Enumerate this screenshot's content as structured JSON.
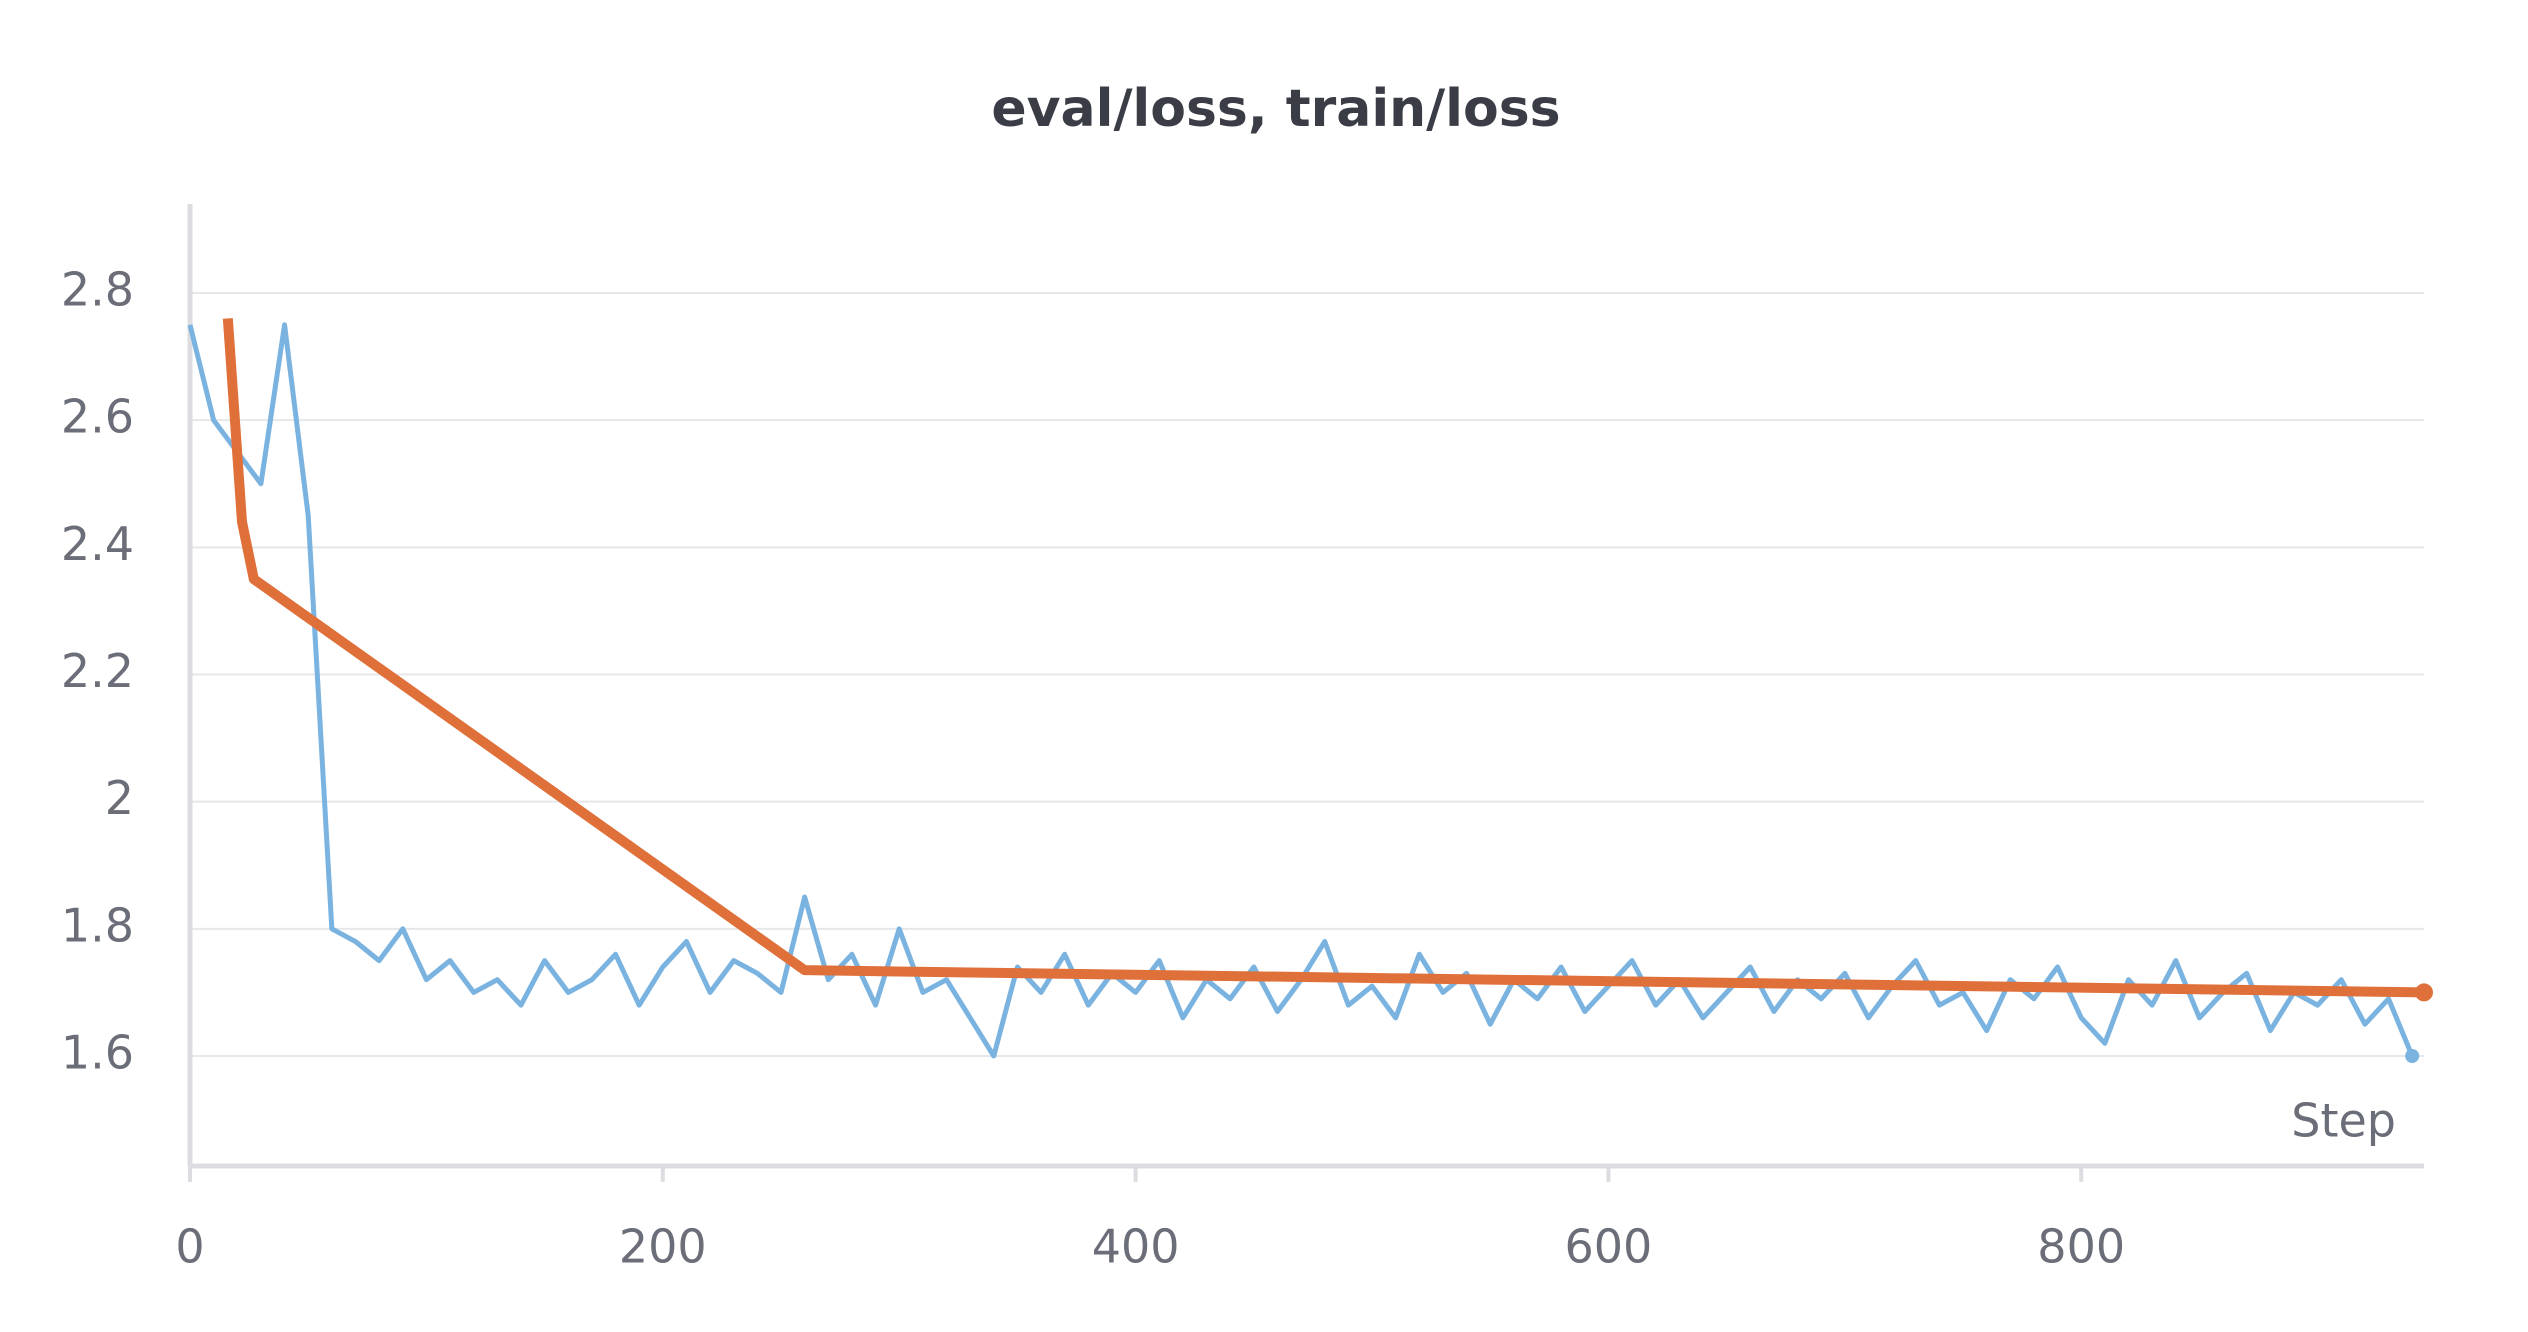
{
  "chart_data": {
    "type": "line",
    "title": "eval/loss, train/loss",
    "x_label": "Step",
    "xlim": [
      0,
      945
    ],
    "xticks": [
      0,
      200,
      400,
      600,
      800
    ],
    "ylim": [
      1.427,
      2.94
    ],
    "yticks": [
      1.6,
      1.8,
      2,
      2.2,
      2.4,
      2.6,
      2.8
    ],
    "grid": true,
    "series": [
      {
        "name": "train/loss",
        "color": "#7ab3e0",
        "x": [
          0,
          10,
          20,
          30,
          40,
          50,
          60,
          70,
          80,
          90,
          100,
          110,
          120,
          130,
          140,
          150,
          160,
          170,
          180,
          190,
          200,
          210,
          220,
          230,
          240,
          250,
          260,
          270,
          280,
          290,
          300,
          310,
          320,
          330,
          340,
          350,
          360,
          370,
          380,
          390,
          400,
          410,
          420,
          430,
          440,
          450,
          460,
          470,
          480,
          490,
          500,
          510,
          520,
          530,
          540,
          550,
          560,
          570,
          580,
          590,
          600,
          610,
          620,
          630,
          640,
          650,
          660,
          670,
          680,
          690,
          700,
          710,
          720,
          730,
          740,
          750,
          760,
          770,
          780,
          790,
          800,
          810,
          820,
          830,
          840,
          850,
          860,
          870,
          880,
          890,
          900,
          910,
          920,
          930,
          940
        ],
        "values": [
          2.75,
          2.6,
          2.55,
          2.5,
          2.75,
          2.45,
          1.8,
          1.78,
          1.75,
          1.8,
          1.72,
          1.75,
          1.7,
          1.72,
          1.68,
          1.75,
          1.7,
          1.72,
          1.76,
          1.68,
          1.74,
          1.78,
          1.7,
          1.75,
          1.73,
          1.7,
          1.85,
          1.72,
          1.76,
          1.68,
          1.8,
          1.7,
          1.72,
          1.66,
          1.6,
          1.74,
          1.7,
          1.76,
          1.68,
          1.73,
          1.7,
          1.75,
          1.66,
          1.72,
          1.69,
          1.74,
          1.67,
          1.72,
          1.78,
          1.68,
          1.71,
          1.66,
          1.76,
          1.7,
          1.73,
          1.65,
          1.72,
          1.69,
          1.74,
          1.67,
          1.71,
          1.75,
          1.68,
          1.72,
          1.66,
          1.7,
          1.74,
          1.67,
          1.72,
          1.69,
          1.73,
          1.66,
          1.71,
          1.75,
          1.68,
          1.7,
          1.64,
          1.72,
          1.69,
          1.74,
          1.66,
          1.62,
          1.72,
          1.68,
          1.75,
          1.66,
          1.7,
          1.73,
          1.64,
          1.7,
          1.68,
          1.72,
          1.65,
          1.69,
          1.6
        ]
      },
      {
        "name": "eval/loss",
        "color": "#e0703a",
        "x": [
          16,
          22,
          27,
          260,
          945
        ],
        "values": [
          2.76,
          2.44,
          2.35,
          1.735,
          1.7
        ]
      }
    ]
  }
}
